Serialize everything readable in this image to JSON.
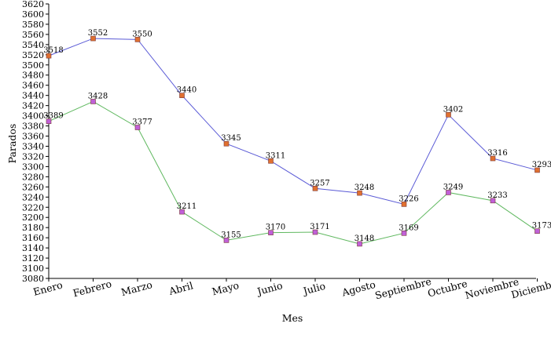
{
  "chart_data": {
    "type": "line",
    "title": "",
    "xlabel": "Mes",
    "ylabel": "Parados",
    "categories": [
      "Enero",
      "Febrero",
      "Marzo",
      "Abril",
      "Mayo",
      "Junio",
      "Julio",
      "Agosto",
      "Septiembre",
      "Octubre",
      "Noviembre",
      "Diciembre"
    ],
    "ylim": [
      3080,
      3620
    ],
    "ytick_step": 20,
    "grid": false,
    "legend": "none",
    "series": [
      {
        "values": [
          3518,
          3552,
          3550,
          3440,
          3345,
          3311,
          3257,
          3248,
          3226,
          3402,
          3316,
          3293
        ],
        "line_color": "#5a5ad6",
        "marker_color": "#e07030"
      },
      {
        "values": [
          3389,
          3428,
          3377,
          3211,
          3155,
          3170,
          3171,
          3148,
          3169,
          3249,
          3233,
          3173
        ],
        "line_color": "#5fb85f",
        "marker_color": "#c060d8"
      }
    ]
  }
}
